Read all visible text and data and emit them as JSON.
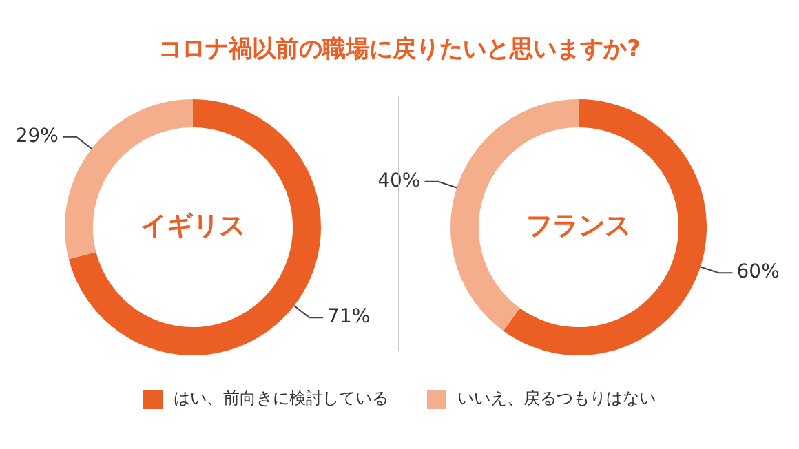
{
  "chart_data": [
    {
      "type": "donut",
      "title": "コロナ禍以前の職場に戻りたいと思いますか?",
      "categories": [
        "はい、前向きに検討している",
        "いいえ、戻るつもりはない"
      ],
      "values": [
        71,
        29
      ],
      "colors": [
        "#ec5f24",
        "#f5ae8c"
      ],
      "value_labels": [
        "71%",
        "29%"
      ],
      "annotations": [
        "イギリス"
      ],
      "legend": "bottom"
    },
    {
      "type": "donut",
      "values": [
        60,
        40
      ],
      "colors": [
        "#ec5f24",
        "#f5ae8c"
      ],
      "value_labels": [
        "60%",
        "40%"
      ],
      "annotations": [
        "フランス"
      ]
    }
  ]
}
